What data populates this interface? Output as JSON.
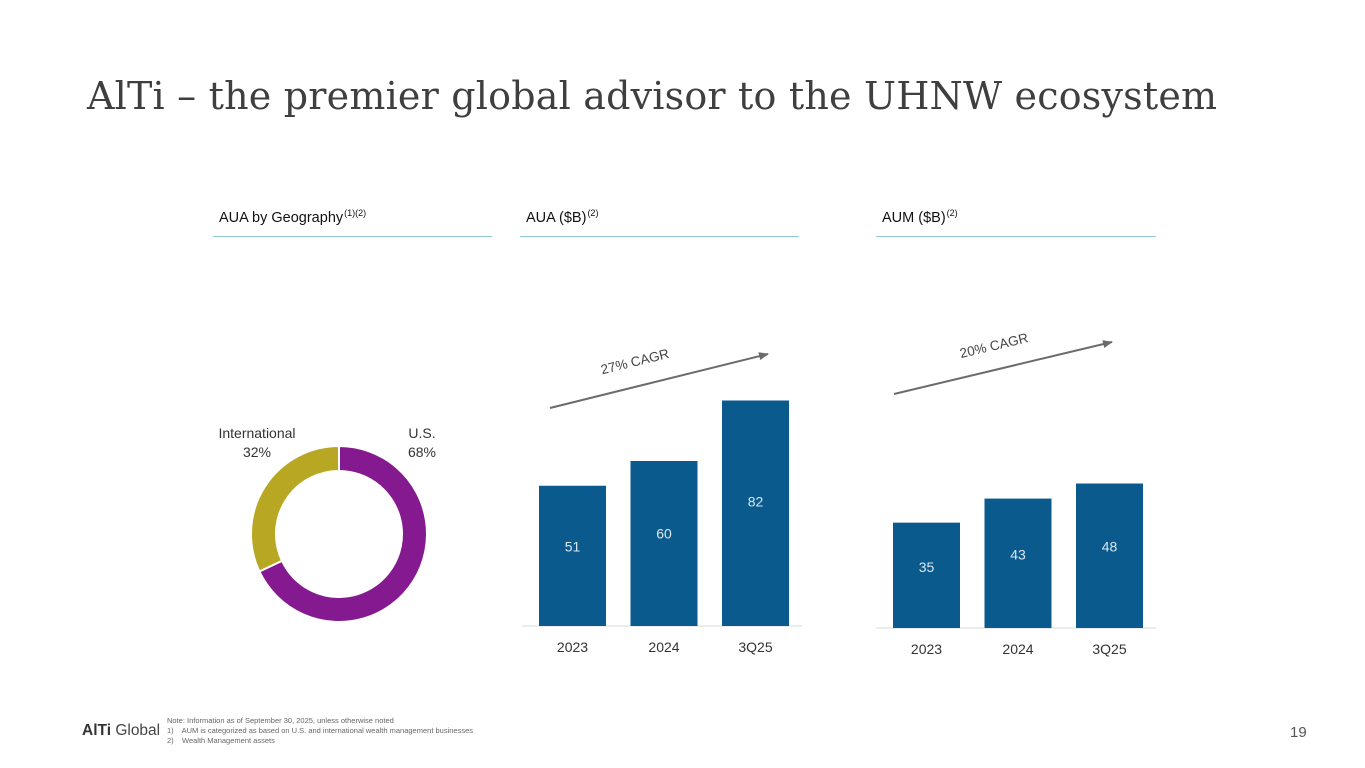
{
  "title": "AlTi – the premier global advisor to the UHNW ecosystem",
  "panels": {
    "geography": {
      "label": "AUA by Geography",
      "sup": "(1)(2)"
    },
    "aua": {
      "label": "AUA ($B)",
      "sup": "(2)"
    },
    "aum": {
      "label": "AUM ($B)",
      "sup": "(2)"
    }
  },
  "chart_data": [
    {
      "type": "pie",
      "style": "donut",
      "categories": [
        "U.S.",
        "International"
      ],
      "values": [
        68,
        32
      ],
      "labels": [
        "68%",
        "32%"
      ],
      "colors": [
        "#85198f",
        "#b8a723"
      ]
    },
    {
      "type": "bar",
      "categories": [
        "2023",
        "2024",
        "3Q25"
      ],
      "values": [
        51,
        60,
        82
      ],
      "labels": [
        "51",
        "60",
        "82"
      ],
      "color": "#0b5a8e",
      "annotation": "27% CAGR"
    },
    {
      "type": "bar",
      "categories": [
        "2023",
        "2024",
        "3Q25"
      ],
      "values": [
        35,
        43,
        48
      ],
      "labels": [
        "35",
        "43",
        "48"
      ],
      "color": "#0b5a8e",
      "annotation": "20% CAGR"
    }
  ],
  "footer": {
    "logo_bold": "AlTi",
    "logo_rest": "Global",
    "notes": [
      "Note: Information as of September 30, 2025, unless otherwise noted",
      "1)    AUM is categorized as based on U.S. and international wealth management businesses",
      "2)    Wealth Management assets"
    ],
    "page_number": "19"
  }
}
